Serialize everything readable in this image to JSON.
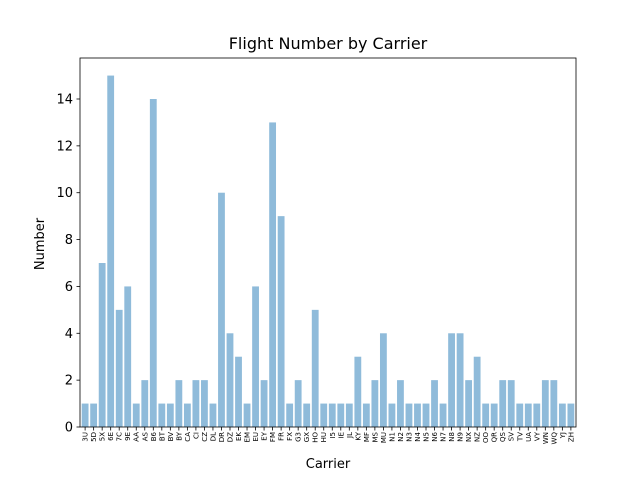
{
  "chart_data": {
    "type": "bar",
    "title": "Flight Number by Carrier",
    "xlabel": "Carrier",
    "ylabel": "Number",
    "ylim": [
      0,
      15.75
    ],
    "yticks": [
      0,
      2,
      4,
      6,
      8,
      10,
      12,
      14
    ],
    "grid": false,
    "bar_color": "#8fbbda",
    "categories": [
      "3U",
      "5D",
      "5X",
      "6E",
      "7C",
      "9E",
      "AA",
      "AS",
      "B6",
      "BT",
      "BV",
      "BY",
      "CA",
      "CI",
      "CZ",
      "DL",
      "DR",
      "DZ",
      "EK",
      "EM",
      "EU",
      "EY",
      "FM",
      "FR",
      "FX",
      "G3",
      "GX",
      "HO",
      "HU",
      "I5",
      "IE",
      "JL",
      "KY",
      "MF",
      "MS",
      "MU",
      "N1",
      "N2",
      "N3",
      "N4",
      "N5",
      "N6",
      "N7",
      "N8",
      "N9",
      "NX",
      "NZ",
      "OO",
      "QR",
      "QS",
      "SV",
      "TV",
      "UA",
      "VY",
      "WN",
      "WQ",
      "YJ",
      "ZH"
    ],
    "values": [
      1,
      1,
      7,
      15,
      5,
      6,
      1,
      2,
      14,
      1,
      1,
      2,
      1,
      2,
      2,
      1,
      10,
      4,
      3,
      1,
      6,
      2,
      13,
      9,
      1,
      2,
      1,
      5,
      1,
      1,
      1,
      1,
      3,
      1,
      2,
      4,
      1,
      2,
      1,
      1,
      1,
      2,
      1,
      4,
      4,
      2,
      3,
      1,
      1,
      2,
      2,
      1,
      1,
      1,
      2,
      2,
      1,
      1
    ]
  }
}
